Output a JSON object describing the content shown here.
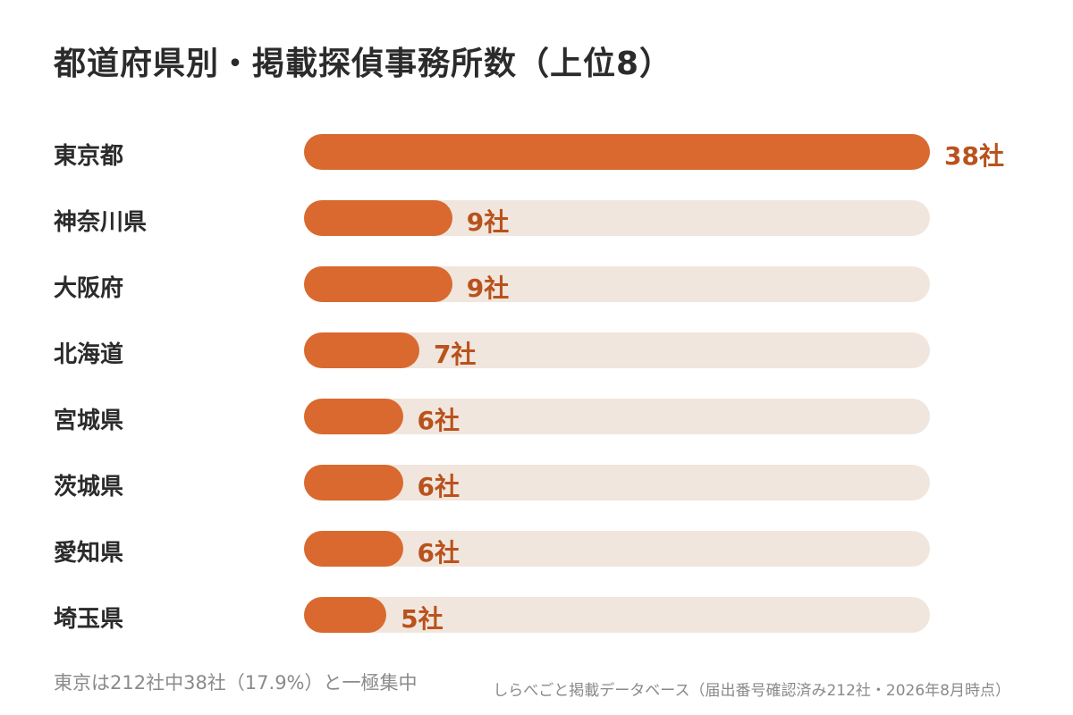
{
  "chart_data": {
    "type": "bar",
    "orientation": "horizontal",
    "title": "都道府県別・掲載探偵事務所数（上位8）",
    "categories": [
      "東京都",
      "神奈川県",
      "大阪府",
      "北海道",
      "宮城県",
      "茨城県",
      "愛知県",
      "埼玉県"
    ],
    "values": [
      38,
      9,
      9,
      7,
      6,
      6,
      6,
      5
    ],
    "value_labels": [
      "38社",
      "9社",
      "9社",
      "7社",
      "6社",
      "6社",
      "6社",
      "5社"
    ],
    "xlim": [
      0,
      38
    ],
    "grid": false,
    "colors": {
      "bar": "#d9692f",
      "track": "#f1e6dd",
      "value_text": "#b9521d"
    }
  },
  "footnote": "東京は212社中38社（17.9%）と一極集中",
  "source": "しらべごと掲載データベース（届出番号確認済み212社・2026年8月時点）"
}
